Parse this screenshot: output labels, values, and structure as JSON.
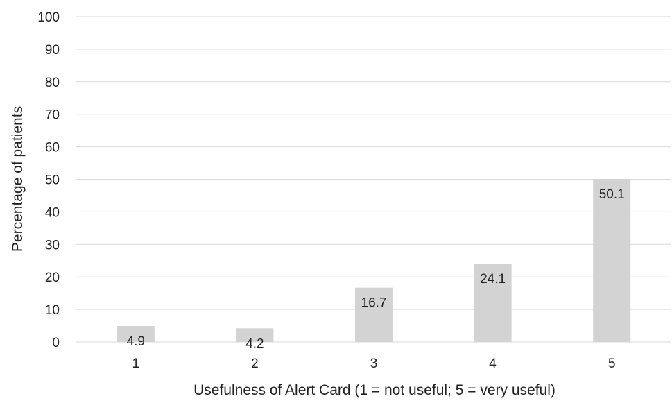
{
  "chart_data": {
    "type": "bar",
    "title": "",
    "xlabel": "Usefulness of Alert Card (1 = not useful; 5 = very useful)",
    "ylabel": "Percentage of patients",
    "categories": [
      "1",
      "2",
      "3",
      "4",
      "5"
    ],
    "values": [
      4.9,
      4.2,
      16.7,
      24.1,
      50.1
    ],
    "data_labels": [
      "4.9",
      "4.2",
      "16.7",
      "24.1",
      "50.1"
    ],
    "ylim": [
      0,
      100
    ],
    "yticks": [
      "0",
      "10",
      "20",
      "30",
      "40",
      "50",
      "60",
      "70",
      "80",
      "90",
      "100"
    ],
    "grid": true,
    "legend": "none",
    "colors": {
      "bar": "#d3d3d3",
      "grid": "#d9d9d9",
      "text": "#222222"
    }
  }
}
